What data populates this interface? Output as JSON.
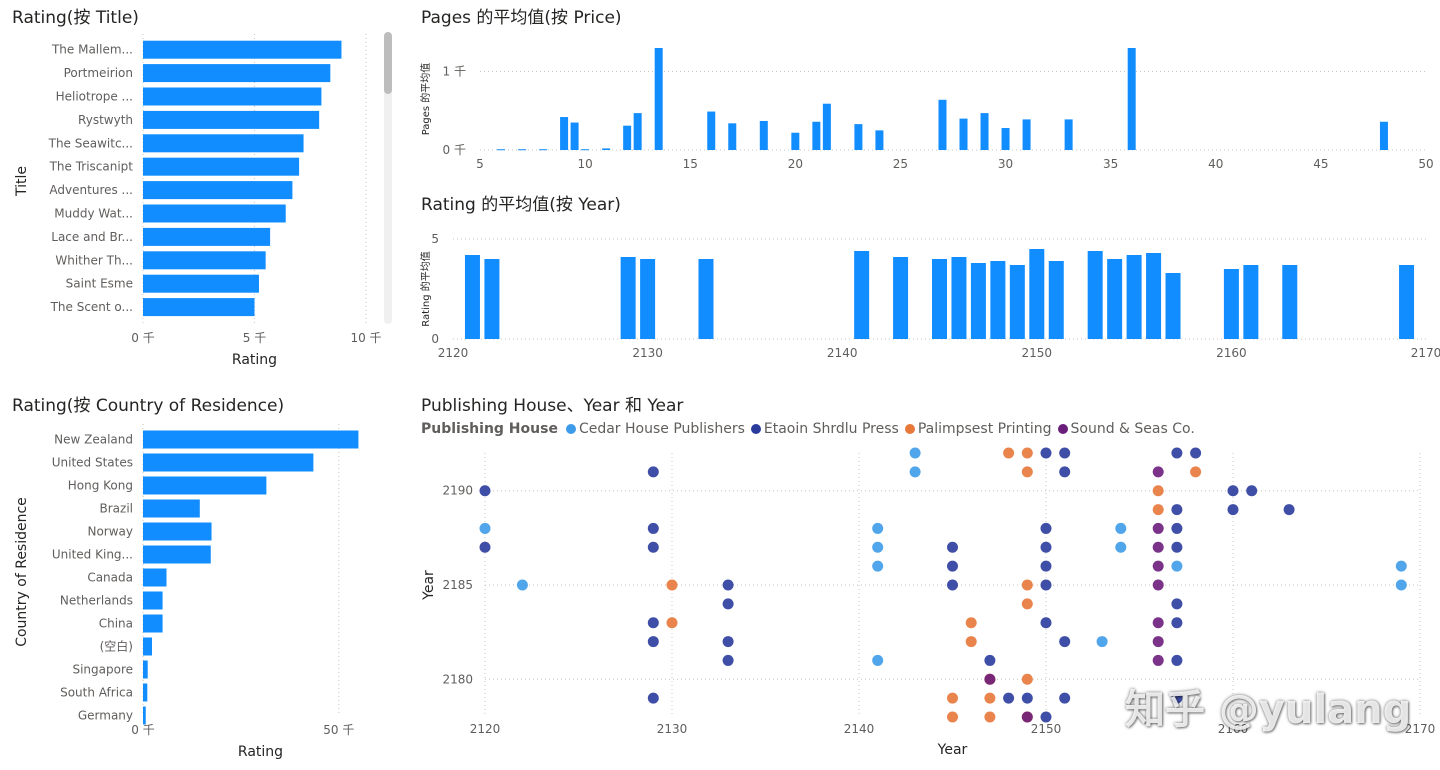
{
  "colors": {
    "bar": "#118DFF",
    "grid": "#c8c6c4",
    "axis_text": "#605e5c"
  },
  "watermark": "知乎 @yulang",
  "chart_data": [
    {
      "id": "rating_by_title",
      "type": "bar",
      "orientation": "horizontal",
      "title": "Rating(按 Title)",
      "xlabel": "Rating",
      "ylabel": "Title",
      "xlim": [
        0,
        10000
      ],
      "xticks": [
        0,
        5000,
        10000
      ],
      "xtick_labels": [
        "0 千",
        "5 千",
        "10 千"
      ],
      "categories": [
        "The Mallem...",
        "Portmeirion",
        "Heliotrope ...",
        "Rystwyth",
        "The Seawitc...",
        "The Triscanipt",
        "Adventures ...",
        "Muddy Wat...",
        "Lace and Br...",
        "Whither Th...",
        "Saint Esme",
        "The Scent o..."
      ],
      "values": [
        8900,
        8400,
        8000,
        7900,
        7200,
        7000,
        6700,
        6400,
        5700,
        5500,
        5200,
        5000
      ]
    },
    {
      "id": "rating_by_country",
      "type": "bar",
      "orientation": "horizontal",
      "title": "Rating(按 Country of Residence)",
      "xlabel": "Rating",
      "ylabel": "Country of Residence",
      "xlim": [
        0,
        60000
      ],
      "xticks": [
        0,
        50000
      ],
      "xtick_labels": [
        "0 千",
        "50 千"
      ],
      "categories": [
        "New Zealand",
        "United States",
        "Hong Kong",
        "Brazil",
        "Norway",
        "United King...",
        "Canada",
        "Netherlands",
        "China",
        "(空白)",
        "Singapore",
        "South Africa",
        "Germany"
      ],
      "values": [
        55000,
        43500,
        31500,
        14500,
        17500,
        17300,
        6000,
        5000,
        5000,
        2300,
        1200,
        1100,
        700
      ]
    },
    {
      "id": "pages_avg_by_price",
      "type": "bar",
      "title": "Pages 的平均值(按 Price)",
      "ylabel": "Pages 的平均值",
      "xlim": [
        5,
        50
      ],
      "xticks": [
        5,
        10,
        15,
        20,
        25,
        30,
        35,
        40,
        45,
        50
      ],
      "ylim": [
        0,
        1300
      ],
      "yticks": [
        0,
        1000
      ],
      "ytick_labels": [
        "0 千",
        "1 千"
      ],
      "x": [
        6,
        7,
        8,
        9,
        9.5,
        10,
        11,
        12,
        12.5,
        13.5,
        16,
        17,
        18.5,
        20,
        21,
        21.5,
        23,
        24,
        27,
        28,
        29,
        30,
        31,
        33,
        36,
        48
      ],
      "values": [
        10,
        10,
        10,
        420,
        350,
        10,
        20,
        310,
        470,
        1300,
        490,
        340,
        370,
        220,
        360,
        590,
        330,
        250,
        640,
        400,
        470,
        280,
        390,
        390,
        1300,
        360
      ]
    },
    {
      "id": "rating_avg_by_year",
      "type": "bar",
      "title": "Rating 的平均值(按 Year)",
      "ylabel": "Rating 的平均值",
      "xlim": [
        2120,
        2170
      ],
      "xticks": [
        2120,
        2130,
        2140,
        2150,
        2160,
        2170
      ],
      "ylim": [
        0,
        5
      ],
      "yticks": [
        0,
        5
      ],
      "ytick_labels": [
        "0",
        "5"
      ],
      "x": [
        2121,
        2122,
        2129,
        2130,
        2133,
        2141,
        2143,
        2145,
        2146,
        2147,
        2148,
        2149,
        2150,
        2151,
        2153,
        2154,
        2155,
        2156,
        2157,
        2160,
        2161,
        2163,
        2169
      ],
      "values": [
        4.2,
        4.0,
        4.1,
        4.0,
        4.0,
        4.4,
        4.1,
        4.0,
        4.1,
        3.8,
        3.9,
        3.7,
        4.5,
        3.9,
        4.4,
        4.0,
        4.2,
        4.3,
        3.3,
        3.5,
        3.7,
        3.7,
        3.7
      ]
    },
    {
      "id": "publishing_house_scatter",
      "type": "scatter",
      "title": "Publishing House、Year 和 Year",
      "xlabel": "Year",
      "ylabel": "Year",
      "xlim": [
        2120,
        2170
      ],
      "xticks": [
        2120,
        2130,
        2140,
        2150,
        2160,
        2170
      ],
      "ylim": [
        2178,
        2192
      ],
      "yticks": [
        2180,
        2185,
        2190
      ],
      "legend_title": "Publishing House",
      "series": [
        {
          "name": "Cedar House Publishers",
          "color": "#3d9be9",
          "points": [
            [
              2143,
              2192
            ],
            [
              2143,
              2191
            ],
            [
              2120,
              2188
            ],
            [
              2122,
              2185
            ],
            [
              2141,
              2188
            ],
            [
              2141,
              2187
            ],
            [
              2141,
              2186
            ],
            [
              2141,
              2181
            ],
            [
              2154,
              2188
            ],
            [
              2154,
              2187
            ],
            [
              2153,
              2182
            ],
            [
              2157,
              2186
            ],
            [
              2169,
              2186
            ],
            [
              2169,
              2185
            ]
          ]
        },
        {
          "name": "Etaoin Shrdlu Press",
          "color": "#2a3b9c",
          "points": [
            [
              2120,
              2190
            ],
            [
              2120,
              2187
            ],
            [
              2129,
              2191
            ],
            [
              2129,
              2188
            ],
            [
              2129,
              2187
            ],
            [
              2129,
              2183
            ],
            [
              2129,
              2182
            ],
            [
              2129,
              2179
            ],
            [
              2133,
              2185
            ],
            [
              2133,
              2184
            ],
            [
              2133,
              2182
            ],
            [
              2133,
              2181
            ],
            [
              2145,
              2187
            ],
            [
              2145,
              2186
            ],
            [
              2145,
              2185
            ],
            [
              2147,
              2181
            ],
            [
              2148,
              2179
            ],
            [
              2149,
              2179
            ],
            [
              2150,
              2192
            ],
            [
              2150,
              2188
            ],
            [
              2150,
              2187
            ],
            [
              2150,
              2186
            ],
            [
              2150,
              2185
            ],
            [
              2150,
              2183
            ],
            [
              2150,
              2178
            ],
            [
              2151,
              2192
            ],
            [
              2151,
              2191
            ],
            [
              2151,
              2182
            ],
            [
              2151,
              2179
            ],
            [
              2157,
              2192
            ],
            [
              2158,
              2192
            ],
            [
              2157,
              2189
            ],
            [
              2157,
              2188
            ],
            [
              2157,
              2187
            ],
            [
              2157,
              2184
            ],
            [
              2157,
              2183
            ],
            [
              2157,
              2181
            ],
            [
              2157,
              2179
            ],
            [
              2160,
              2190
            ],
            [
              2161,
              2190
            ],
            [
              2160,
              2189
            ],
            [
              2163,
              2189
            ]
          ]
        },
        {
          "name": "Palimpsest Printing",
          "color": "#e8773a",
          "points": [
            [
              2148,
              2192
            ],
            [
              2149,
              2192
            ],
            [
              2149,
              2191
            ],
            [
              2130,
              2185
            ],
            [
              2130,
              2183
            ],
            [
              2146,
              2183
            ],
            [
              2146,
              2182
            ],
            [
              2147,
              2180
            ],
            [
              2149,
              2185
            ],
            [
              2149,
              2184
            ],
            [
              2149,
              2180
            ],
            [
              2145,
              2179
            ],
            [
              2147,
              2179
            ],
            [
              2145,
              2178
            ],
            [
              2147,
              2178
            ],
            [
              2149,
              2178
            ],
            [
              2156,
              2190
            ],
            [
              2156,
              2189
            ],
            [
              2158,
              2191
            ]
          ]
        },
        {
          "name": "Sound & Seas Co.",
          "color": "#6b1d7c",
          "points": [
            [
              2156,
              2191
            ],
            [
              2156,
              2188
            ],
            [
              2156,
              2187
            ],
            [
              2156,
              2186
            ],
            [
              2156,
              2185
            ],
            [
              2156,
              2183
            ],
            [
              2156,
              2182
            ],
            [
              2156,
              2181
            ],
            [
              2147,
              2180
            ],
            [
              2149,
              2178
            ]
          ]
        }
      ]
    }
  ]
}
